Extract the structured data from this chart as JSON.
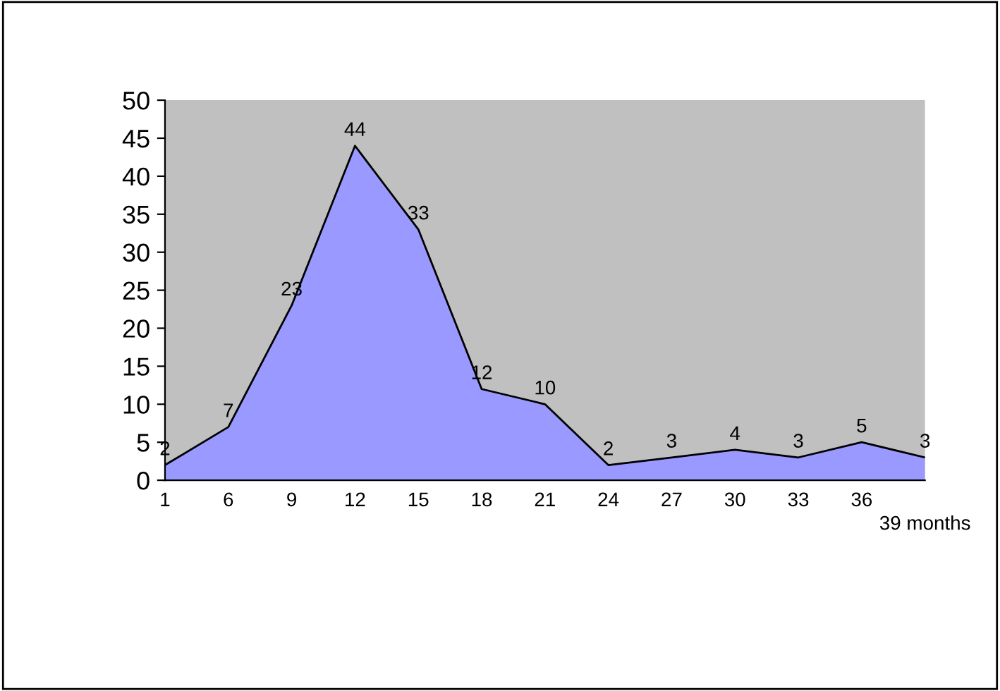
{
  "chart_data": {
    "type": "area",
    "categories": [
      "1",
      "6",
      "9",
      "12",
      "15",
      "18",
      "21",
      "24",
      "27",
      "30",
      "33",
      "36",
      "39 months"
    ],
    "series": [
      {
        "color": "#9999ff",
        "values": [
          2,
          7,
          23,
          44,
          33,
          12,
          10,
          2,
          3,
          4,
          3,
          5,
          3
        ]
      }
    ],
    "ylim": [
      0,
      50
    ],
    "yticks": [
      0,
      5,
      10,
      15,
      20,
      25,
      30,
      35,
      40,
      45,
      50
    ],
    "data_labels": true,
    "grid": false,
    "legend": false
  }
}
